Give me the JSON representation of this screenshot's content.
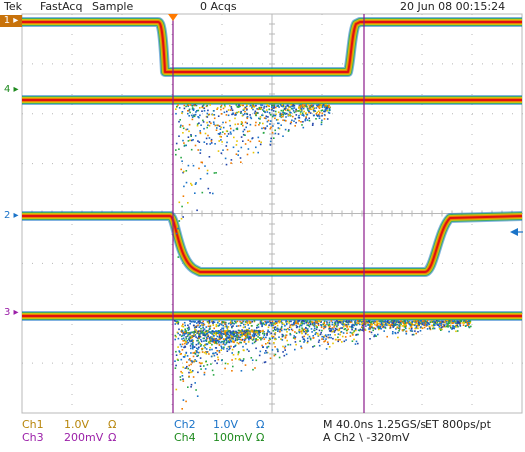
{
  "header": {
    "brand": "Tek",
    "mode": "FastAcq",
    "acq_mode": "Sample",
    "acq_count": "0 Acqs",
    "datetime": "20 Jun 08 00:15:24"
  },
  "markers": {
    "ch1": "1",
    "ch4": "4",
    "ch2": "2",
    "ch3": "3"
  },
  "footer": {
    "ch1": {
      "name": "Ch1",
      "scale": "1.0V",
      "coupling": "Ω"
    },
    "ch3": {
      "name": "Ch3",
      "scale": "200mV",
      "coupling": "Ω"
    },
    "ch2": {
      "name": "Ch2",
      "scale": "1.0V",
      "coupling": "Ω"
    },
    "ch4": {
      "name": "Ch4",
      "scale": "100mV",
      "coupling": "Ω"
    },
    "timebase": "M 40.0ns 1.25GS/s",
    "et": "ET 800ps/pt",
    "trigger": "A  Ch2  \\  -320mV"
  },
  "colors": {
    "ch1": "#b8860b",
    "ch2": "#1a73c8",
    "ch3": "#9b1fa8",
    "ch4": "#1e8a1e",
    "cursor": "#8b1a8b",
    "grid": "#b8b8b8",
    "trigger": "#ff7a00"
  },
  "icons": [
    "ch1-ground-marker",
    "ch2-ground-marker",
    "ch3-ground-marker",
    "ch4-ground-marker",
    "trigger-position-icon",
    "trigger-level-arrow-icon"
  ]
}
